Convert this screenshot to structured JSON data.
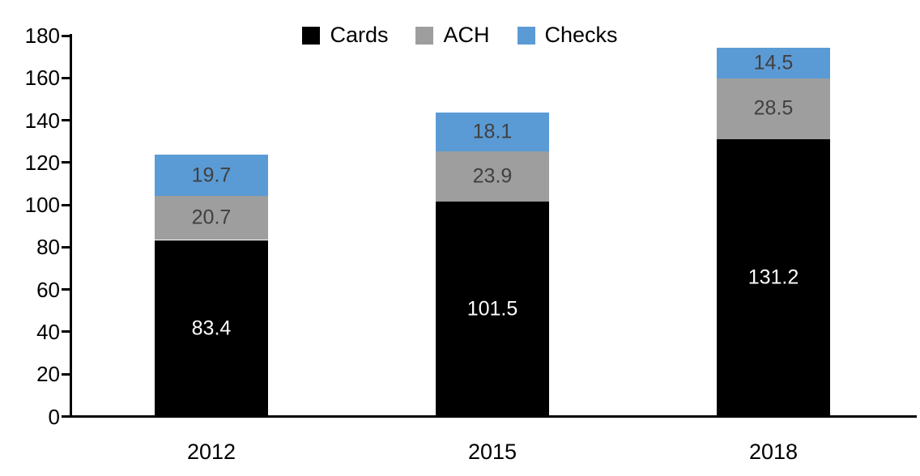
{
  "chart_data": {
    "type": "bar",
    "stacked": true,
    "title": "",
    "xlabel": "",
    "ylabel": "",
    "categories": [
      "2012",
      "2015",
      "2018"
    ],
    "series": [
      {
        "name": "Cards",
        "color": "#000000",
        "label_color": "#ffffff",
        "values": [
          83.4,
          101.5,
          131.2
        ]
      },
      {
        "name": "ACH",
        "color": "#9E9E9E",
        "label_color": "#404040",
        "values": [
          20.7,
          23.9,
          28.5
        ]
      },
      {
        "name": "Checks",
        "color": "#5B9BD5",
        "label_color": "#404040",
        "values": [
          19.7,
          18.1,
          14.5
        ]
      }
    ],
    "totals": [
      123.8,
      143.5,
      174.2
    ],
    "ylim": [
      0,
      180
    ],
    "ytick_step": 20,
    "ytick_labels": [
      "0",
      "20",
      "40",
      "60",
      "80",
      "100",
      "120",
      "140",
      "160",
      "180"
    ],
    "grid": false,
    "legend_position": "top-center",
    "axis_color": "#000000"
  }
}
